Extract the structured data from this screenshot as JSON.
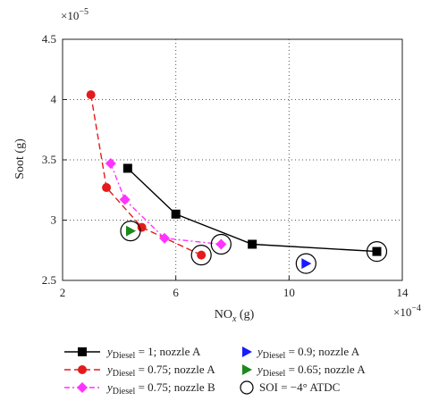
{
  "chart_data": {
    "type": "line",
    "title": "",
    "xlabel": "NO",
    "xlabel_sub": "x",
    "xlabel_unit": " (g)",
    "ylabel": "Soot (g)",
    "x_multiplier": "×10",
    "x_multiplier_exp": "−4",
    "y_multiplier": "×10",
    "y_multiplier_exp": "−5",
    "xlim": [
      2,
      14
    ],
    "ylim": [
      2.5,
      4.5
    ],
    "xticks": [
      2,
      6,
      10,
      14
    ],
    "xtick_labels": [
      "2",
      "6",
      "10",
      "14"
    ],
    "yticks": [
      2.5,
      3,
      3.5,
      4,
      4.5
    ],
    "ytick_labels": [
      "2.5",
      "3",
      "3.5",
      "4",
      "4.5"
    ],
    "grid": "dotted",
    "legend_position": "bottom",
    "series": [
      {
        "name_pre": "y",
        "name_sub": "Diesel",
        "name_post": " = 1; nozzle A",
        "marker": "square",
        "color": "#000000",
        "line": "solid",
        "x": [
          4.3,
          6.0,
          8.7,
          13.1
        ],
        "y": [
          3.43,
          3.05,
          2.8,
          2.74
        ]
      },
      {
        "name_pre": "y",
        "name_sub": "Diesel",
        "name_post": " = 0.75; nozzle A",
        "marker": "circle",
        "color": "#e41a1c",
        "line": "dashed",
        "x": [
          3.0,
          3.55,
          4.8,
          6.9
        ],
        "y": [
          4.04,
          3.27,
          2.94,
          2.71
        ]
      },
      {
        "name_pre": "y",
        "name_sub": "Diesel",
        "name_post": " = 0.75; nozzle B",
        "marker": "diamond",
        "color": "#ff33ff",
        "line": "dashdot",
        "x": [
          3.7,
          4.2,
          5.6,
          7.6
        ],
        "y": [
          3.47,
          3.17,
          2.85,
          2.8
        ]
      },
      {
        "name_pre": "y",
        "name_sub": "Diesel",
        "name_post": " = 0.9; nozzle A",
        "marker": "triangle-right",
        "color": "#1a1aff",
        "line": "none",
        "x": [
          10.6
        ],
        "y": [
          2.64
        ]
      },
      {
        "name_pre": "y",
        "name_sub": "Diesel",
        "name_post": " = 0.65; nozzle A",
        "marker": "triangle-right",
        "color": "#1a8a1a",
        "line": "none",
        "x": [
          4.4
        ],
        "y": [
          2.91
        ]
      }
    ],
    "soi_marker": {
      "label": "SOI = −4° ATDC",
      "x": [
        4.4,
        6.9,
        7.6,
        10.6,
        13.1
      ],
      "y": [
        2.91,
        2.71,
        2.8,
        2.64,
        2.74
      ]
    }
  }
}
